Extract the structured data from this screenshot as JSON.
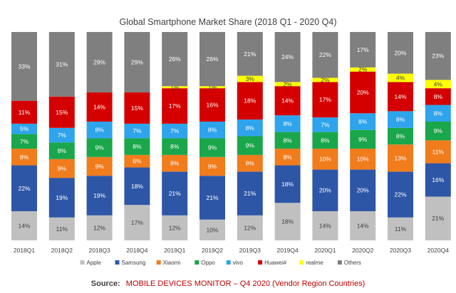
{
  "chart_data": {
    "type": "bar",
    "stacked": true,
    "title": "Global Smartphone Market Share (2018 Q1 - 2020 Q4)",
    "categories": [
      "2018Q1",
      "2018Q2",
      "2018Q3",
      "2018Q4",
      "2019Q1",
      "2019Q2",
      "2019Q3",
      "2019Q4",
      "2020Q1",
      "2020Q2",
      "2020Q3",
      "2020Q4"
    ],
    "ylim": [
      0,
      100
    ],
    "grid": false,
    "legend_position": "bottom",
    "series": [
      {
        "name": "Apple",
        "color": "#c0c0c0",
        "label_color": "#404040",
        "values": [
          14,
          11,
          12,
          17,
          12,
          10,
          12,
          18,
          14,
          14,
          11,
          21
        ]
      },
      {
        "name": "Samsung",
        "color": "#2e56a6",
        "label_color": "#ffffff",
        "values": [
          22,
          19,
          19,
          18,
          21,
          21,
          21,
          18,
          20,
          20,
          22,
          16
        ]
      },
      {
        "name": "Xiaomi",
        "color": "#f07c1c",
        "label_color": "#ffffff",
        "values": [
          8,
          9,
          9,
          6,
          8,
          9,
          8,
          8,
          10,
          10,
          13,
          11
        ]
      },
      {
        "name": "Oppo",
        "color": "#1aa64a",
        "label_color": "#ffffff",
        "values": [
          7,
          8,
          9,
          8,
          8,
          9,
          9,
          8,
          8,
          9,
          8,
          9
        ]
      },
      {
        "name": "vivo",
        "color": "#2ea4ec",
        "label_color": "#ffffff",
        "values": [
          5,
          7,
          8,
          7,
          7,
          8,
          8,
          8,
          7,
          8,
          8,
          8
        ]
      },
      {
        "name": "Huawei#",
        "color": "#d40000",
        "label_color": "#ffffff",
        "values": [
          11,
          15,
          14,
          15,
          17,
          16,
          18,
          14,
          17,
          20,
          14,
          8
        ]
      },
      {
        "name": "realme",
        "color": "#ffff00",
        "label_color": "#404040",
        "values": [
          0,
          0,
          0,
          0,
          1,
          1,
          3,
          2,
          2,
          2,
          4,
          4
        ]
      },
      {
        "name": "Others",
        "color": "#7f7f7f",
        "label_color": "#ffffff",
        "values": [
          33,
          31,
          29,
          29,
          26,
          26,
          21,
          24,
          22,
          17,
          20,
          23
        ]
      }
    ]
  },
  "source": {
    "label": "Source:",
    "text": "MOBILE DEVICES MONITOR – Q4 2020 (Vendor Region Countries)",
    "label_color": "#404040",
    "text_color": "#c00000"
  }
}
